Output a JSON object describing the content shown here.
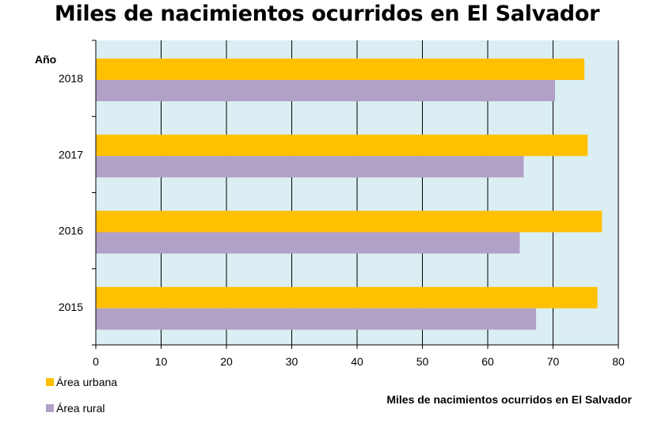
{
  "chart_data": {
    "type": "bar",
    "orientation": "horizontal",
    "title": "Miles de nacimientos ocurridos en El Salvador",
    "xlabel": "Miles de nacimientos ocurridos en El Salvador",
    "ylabel": "Año",
    "categories": [
      "2018",
      "2017",
      "2016",
      "2015"
    ],
    "series": [
      {
        "name": "Área urbana",
        "color": "#FFC000",
        "values": [
          74.8,
          75.3,
          77.5,
          76.8
        ]
      },
      {
        "name": "Área rural",
        "color": "#B2A1C7",
        "values": [
          70.3,
          65.5,
          64.9,
          67.4
        ]
      }
    ],
    "xlim": [
      0,
      80
    ],
    "xticks": [
      0,
      10,
      20,
      30,
      40,
      50,
      60,
      70,
      80
    ],
    "grid": true,
    "plot_background": "#DAEEF3",
    "legend_position": "bottom-left"
  }
}
